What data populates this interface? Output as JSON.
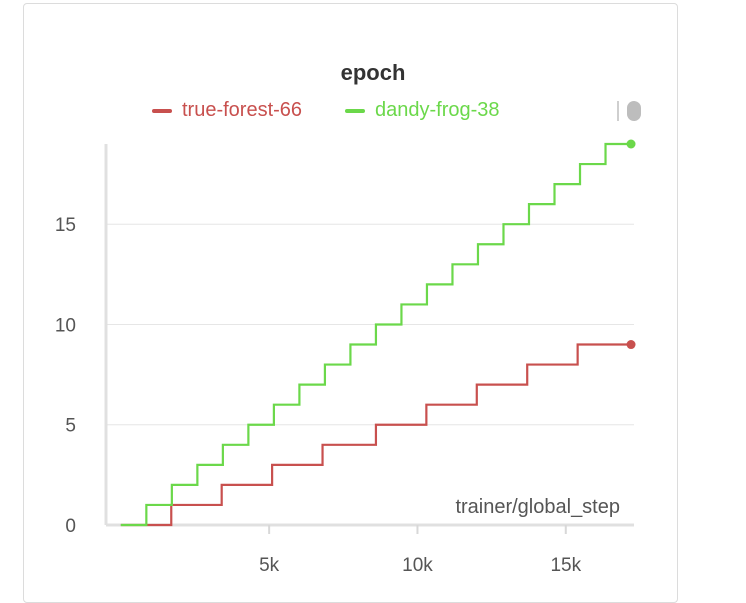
{
  "chart_data": {
    "type": "line",
    "title": "epoch",
    "xlabel": "trainer/global_step",
    "ylabel": "",
    "xlim": [
      -500,
      17300
    ],
    "ylim": [
      0,
      19
    ],
    "x_ticks": [
      5000,
      10000,
      15000
    ],
    "x_tick_labels": [
      "5k",
      "10k",
      "15k"
    ],
    "y_ticks": [
      0,
      5,
      10,
      15
    ],
    "y_tick_labels": [
      "0",
      "5",
      "10",
      "15"
    ],
    "grid": true,
    "legend_position": "top",
    "series": [
      {
        "name": "true-forest-66",
        "color": "#c8504e",
        "step": true,
        "x": [
          0,
          1700,
          3400,
          5100,
          6800,
          8600,
          10300,
          12000,
          13700,
          15400,
          17200
        ],
        "y": [
          0,
          1,
          2,
          3,
          4,
          5,
          6,
          7,
          8,
          9,
          9
        ]
      },
      {
        "name": "dandy-frog-38",
        "color": "#6bd84a",
        "step": true,
        "x": [
          0,
          860,
          1720,
          2580,
          3440,
          4300,
          5160,
          6020,
          6880,
          7740,
          8600,
          9460,
          10320,
          11180,
          12040,
          12900,
          13760,
          14620,
          15480,
          16340,
          17200
        ],
        "y": [
          0,
          1,
          2,
          3,
          4,
          5,
          6,
          7,
          8,
          9,
          10,
          11,
          12,
          13,
          14,
          15,
          16,
          17,
          18,
          19,
          19
        ]
      }
    ]
  }
}
